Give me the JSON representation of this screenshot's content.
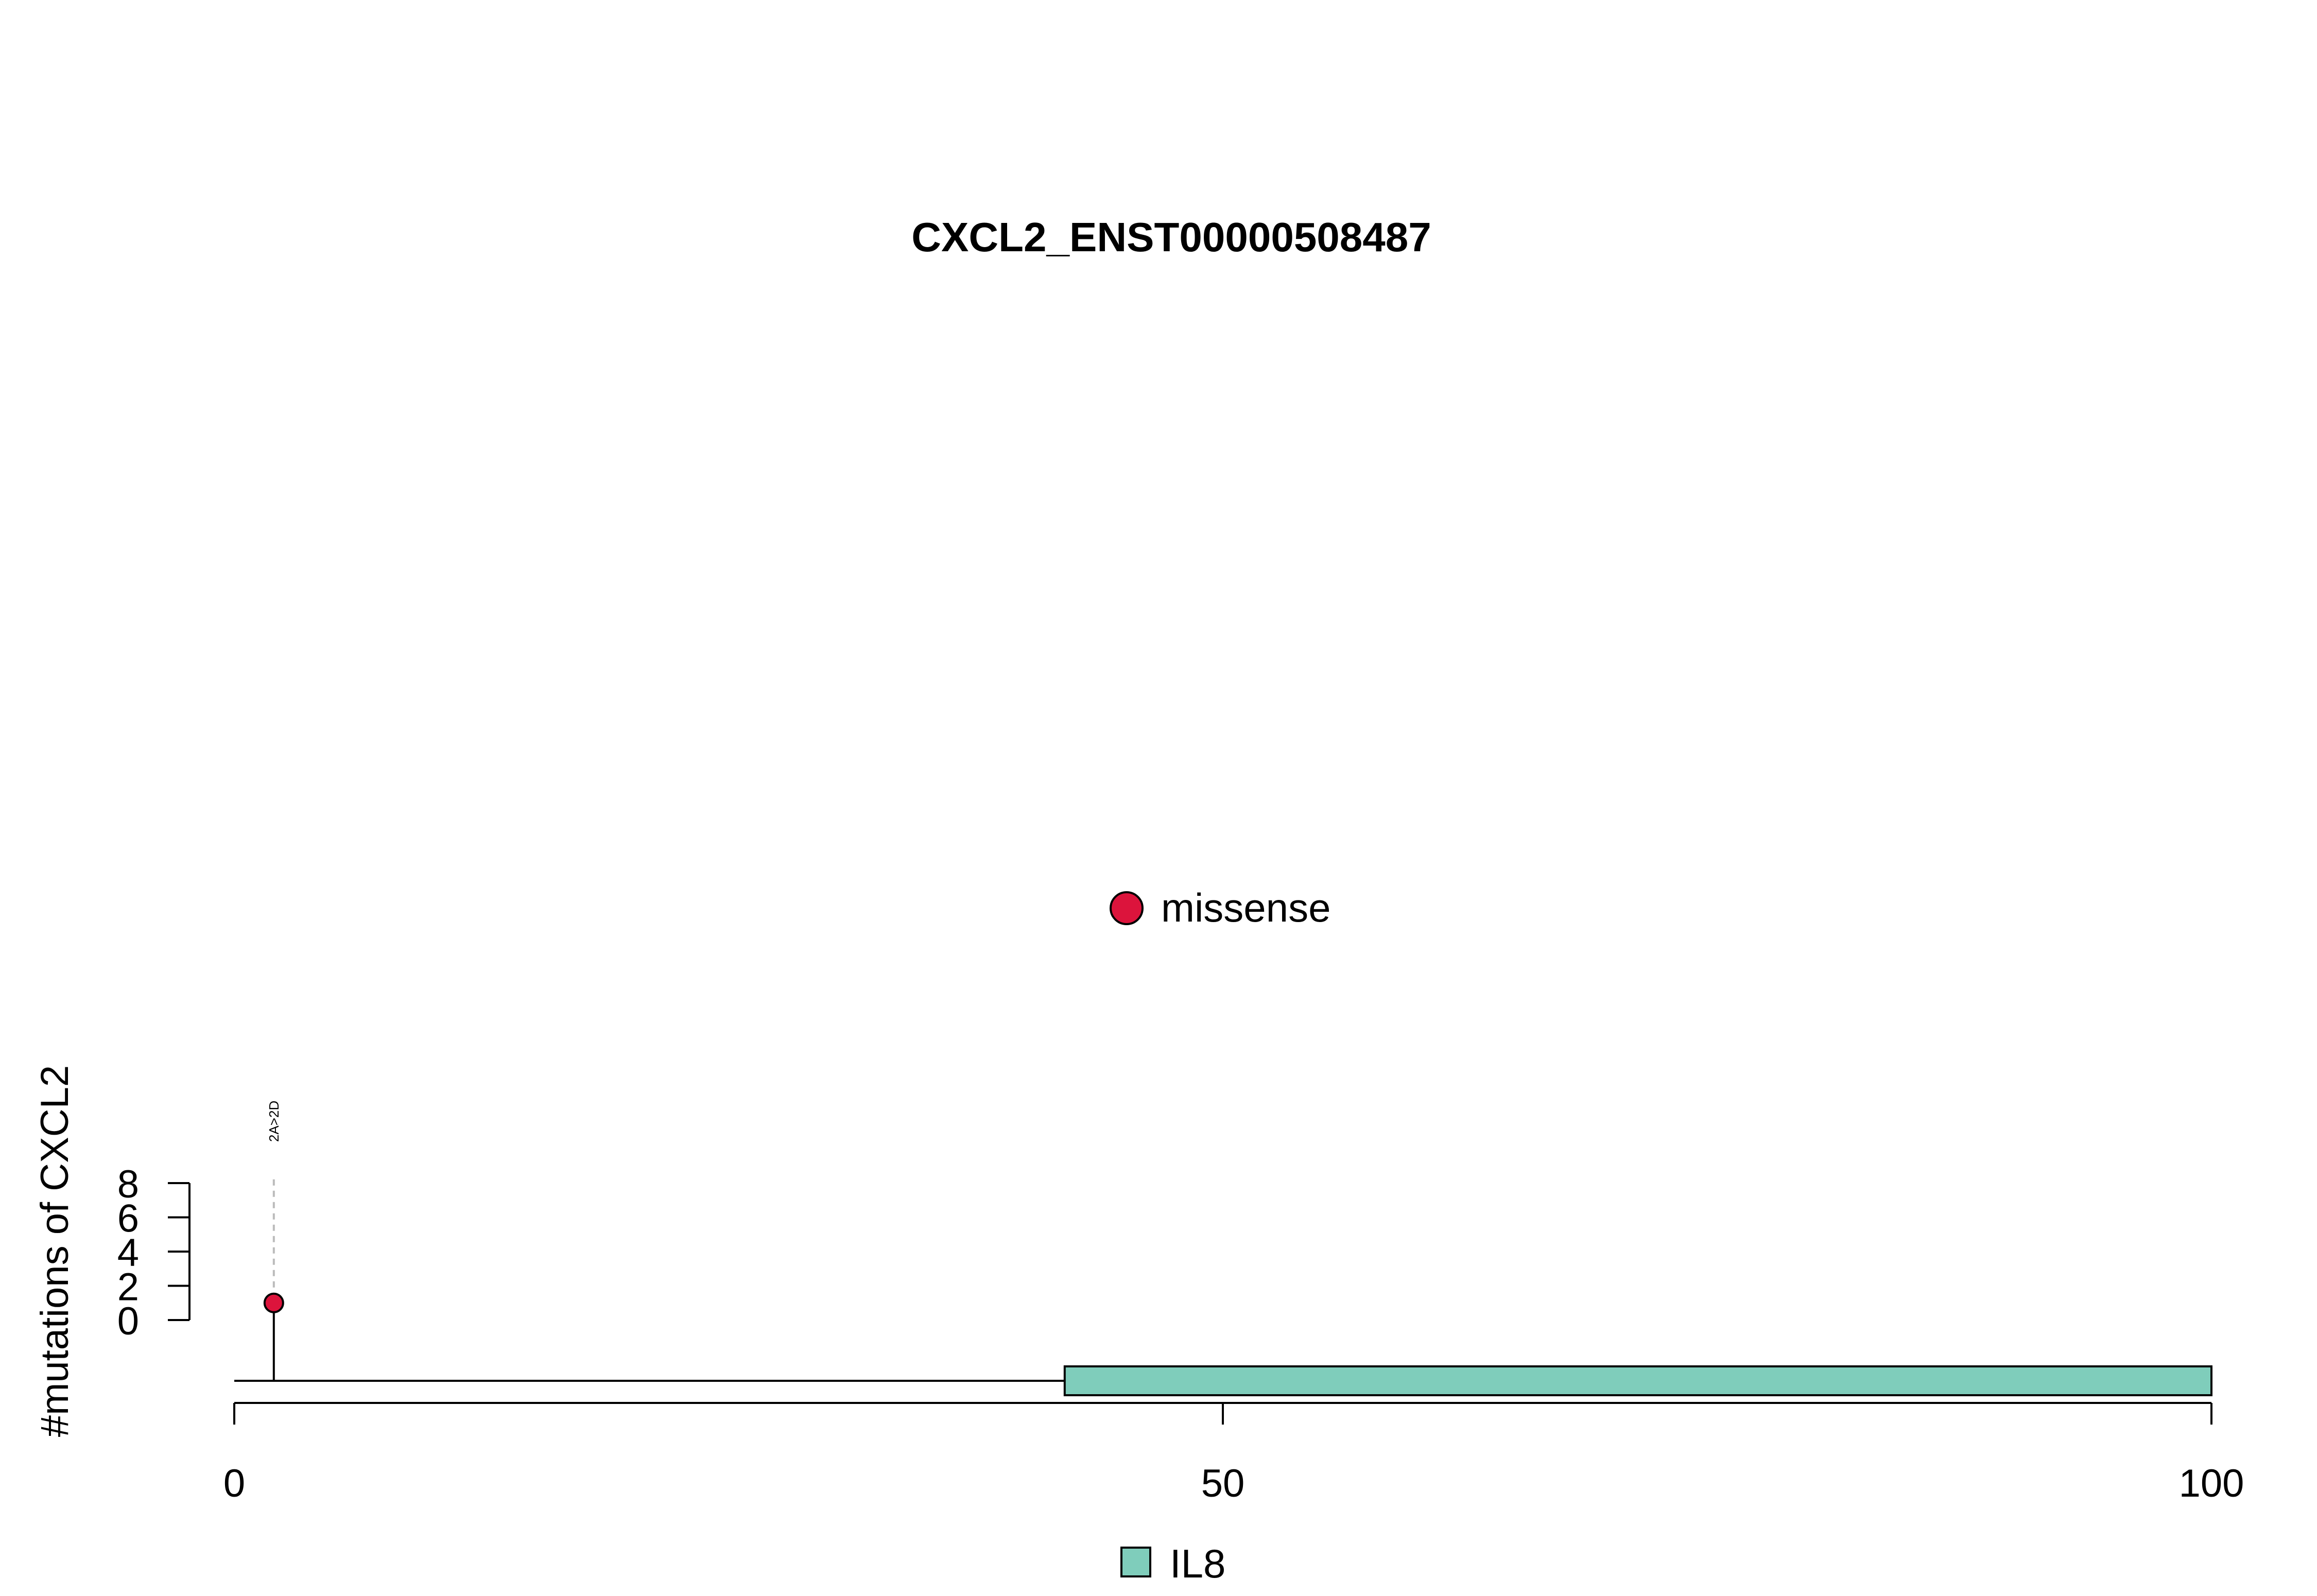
{
  "chart_data": {
    "type": "lollipop",
    "title": "CXCL2_ENST00000508487",
    "ylabel": "#mutations of CXCL2",
    "xlabel": "",
    "xlim": [
      0,
      100
    ],
    "x_ticks": [
      0,
      50,
      100
    ],
    "x_tick_labels": [
      "0",
      "50",
      "100"
    ],
    "ylim": [
      0,
      8
    ],
    "y_ticks": [
      0,
      2,
      4,
      6,
      8
    ],
    "y_tick_labels": [
      "0",
      "2",
      "4",
      "6",
      "8"
    ],
    "mutations": [
      {
        "position": 2,
        "count": 1,
        "label": "2A>2D",
        "type": "missense",
        "color": "#DC143C"
      }
    ],
    "domains": [
      {
        "name": "IL8",
        "start": 42,
        "end": 100,
        "color": "#7FCDBB"
      }
    ],
    "mutation_legend": [
      {
        "label": "missense",
        "color": "#DC143C"
      }
    ],
    "domain_legend": [
      {
        "label": "IL8",
        "color": "#7FCDBB"
      }
    ]
  }
}
